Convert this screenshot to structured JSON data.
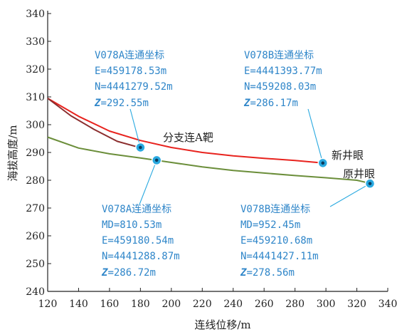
{
  "chart_data": {
    "type": "line",
    "xlabel": "连线位移/m",
    "ylabel": "海拔高度/m",
    "xlim": [
      120,
      340
    ],
    "ylim": [
      240,
      340
    ],
    "xticks": [
      120,
      140,
      160,
      180,
      200,
      220,
      240,
      260,
      280,
      300,
      320,
      340
    ],
    "yticks": [
      240,
      250,
      260,
      270,
      280,
      290,
      300,
      310,
      320,
      330,
      340
    ],
    "grid": false,
    "series": [
      {
        "color": "#e8231e",
        "x": [
          120,
          140,
          160,
          180,
          200,
          220,
          240,
          260,
          280,
          298
        ],
        "y": [
          309.5,
          303.0,
          297.7,
          294.3,
          291.8,
          290.0,
          288.8,
          287.9,
          287.1,
          286.2
        ]
      },
      {
        "color": "#8b2e2e",
        "x": [
          120,
          135,
          150,
          165,
          178
        ],
        "y": [
          309.5,
          303.2,
          298.3,
          294.0,
          292.0
        ]
      },
      {
        "color": "#6b8e3a",
        "x": [
          120,
          140,
          160,
          180,
          200,
          220,
          240,
          260,
          280,
          300,
          320,
          330
        ],
        "y": [
          295.5,
          291.6,
          289.5,
          288.0,
          286.4,
          284.8,
          283.5,
          282.6,
          281.7,
          280.9,
          280.0,
          278.7
        ]
      }
    ],
    "points": [
      {
        "id": "A-target",
        "x": 180,
        "y": 291.8
      },
      {
        "id": "A-lower",
        "x": 190.5,
        "y": 287.2
      },
      {
        "id": "new-well",
        "x": 298,
        "y": 286.2
      },
      {
        "id": "orig-well",
        "x": 328.5,
        "y": 278.8
      }
    ],
    "annotations": {
      "v078a_top": {
        "lines": [
          "V078A连通坐标",
          "E=459178.53m",
          "N=4441279.52m"
        ],
        "z_label": "Z",
        "z_value": "=292.55m"
      },
      "v078b_top": {
        "lines": [
          "V078B连通坐标",
          "E=4441393.77m",
          "N=459208.03m"
        ],
        "z_label": "Z",
        "z_value": "=286.17m"
      },
      "v078a_bottom": {
        "lines": [
          "V078A连通坐标",
          "MD=810.53m",
          "E=459180.54m",
          "N=4441288.87m"
        ],
        "z_label": "Z",
        "z_value": "=286.72m"
      },
      "v078b_bottom": {
        "lines": [
          "V078B连通坐标",
          "MD=952.45m",
          "E=459210.68m",
          "N=4441427.11m"
        ],
        "z_label": "Z",
        "z_value": "=278.56m"
      },
      "branch_target": "分支连A靶",
      "new_well": "新井眼",
      "original_well": "原井眼"
    },
    "colors": {
      "annotation_text": "#2f86c9",
      "leader_line": "#29a9e0",
      "point_fill": "#29a9e0"
    }
  }
}
